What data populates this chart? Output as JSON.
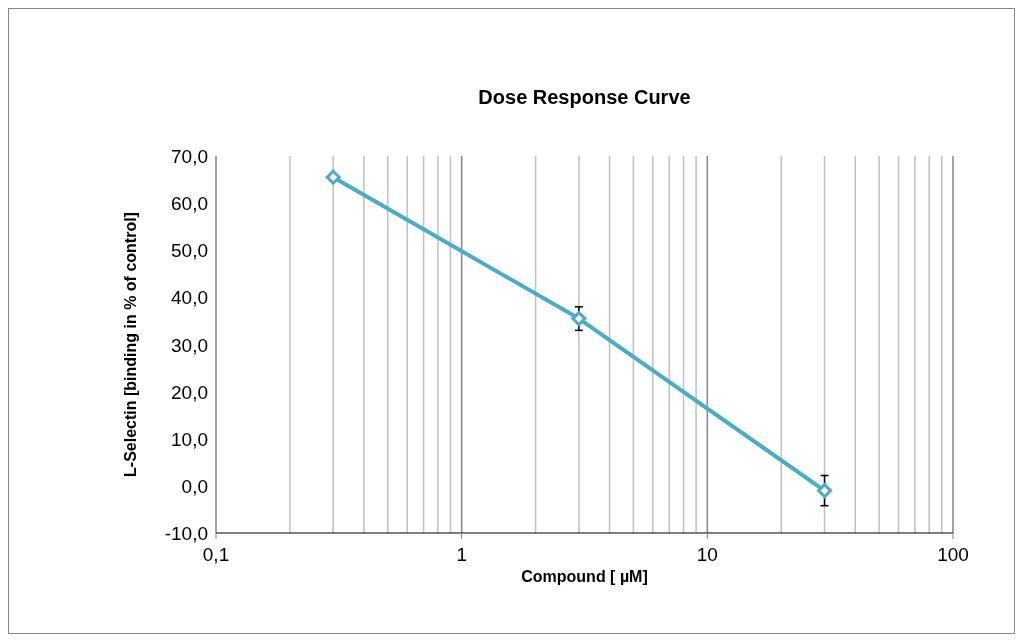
{
  "chart_data": {
    "type": "line",
    "title": "Dose Response Curve",
    "xlabel": "Compound [ µM]",
    "ylabel": "L-Selectin [binding in % of control]",
    "log": "x",
    "x": [
      0.3,
      3,
      30
    ],
    "series": [
      {
        "color": "#4bacc6",
        "values": [
          65.5,
          35.5,
          -1.0
        ],
        "errors": [
          null,
          2.5,
          3.2
        ]
      }
    ],
    "xlim": [
      0.1,
      100
    ],
    "xticks": [
      {
        "value": 0.1,
        "label": "0,1"
      },
      {
        "value": 0.2,
        "label": null
      },
      {
        "value": 0.3,
        "label": null
      },
      {
        "value": 0.4,
        "label": null
      },
      {
        "value": 0.5,
        "label": null
      },
      {
        "value": 0.6,
        "label": null
      },
      {
        "value": 0.7,
        "label": null
      },
      {
        "value": 0.8,
        "label": null
      },
      {
        "value": 0.9,
        "label": null
      },
      1,
      {
        "value": 2,
        "label": null
      },
      {
        "value": 3,
        "label": null
      },
      {
        "value": 4,
        "label": null
      },
      {
        "value": 5,
        "label": null
      },
      {
        "value": 6,
        "label": null
      },
      {
        "value": 7,
        "label": null
      },
      {
        "value": 8,
        "label": null
      },
      {
        "value": 9,
        "label": null
      },
      10,
      {
        "value": 20,
        "label": null
      },
      {
        "value": 30,
        "label": null
      },
      {
        "value": 40,
        "label": null
      },
      {
        "value": 50,
        "label": null
      },
      {
        "value": 60,
        "label": null
      },
      {
        "value": 70,
        "label": null
      },
      {
        "value": 80,
        "label": null
      },
      {
        "value": 90,
        "label": null
      },
      100
    ],
    "ylim": [
      -10,
      70
    ],
    "yticks": [
      {
        "value": -10,
        "label": "-10,0"
      },
      {
        "value": 0,
        "label": "0,0"
      },
      {
        "value": 10,
        "label": "10,0"
      },
      {
        "value": 20,
        "label": "20,0"
      },
      {
        "value": 30,
        "label": "30,0"
      },
      {
        "value": 40,
        "label": "40,0"
      },
      {
        "value": 50,
        "label": "50,0"
      },
      {
        "value": 60,
        "label": "60,0"
      },
      {
        "value": 70,
        "label": "70,0"
      }
    ],
    "grid": "x",
    "marker": "diamond",
    "line_style": "solid"
  }
}
